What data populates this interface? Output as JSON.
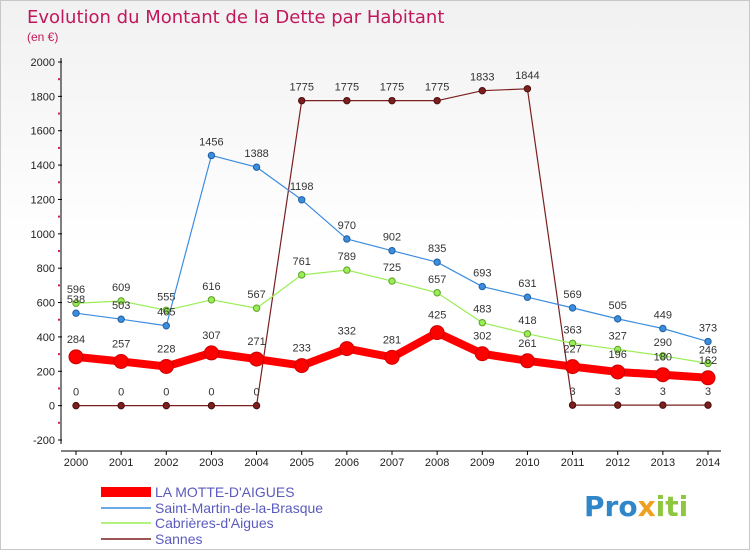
{
  "chart_data": {
    "type": "line",
    "title": "Evolution du Montant de la Dette par Habitant",
    "subtitle": "(en €)",
    "categories": [
      "2000",
      "2001",
      "2002",
      "2003",
      "2004",
      "2005",
      "2006",
      "2007",
      "2008",
      "2009",
      "2010",
      "2011",
      "2012",
      "2013",
      "2014"
    ],
    "ylim": [
      -200,
      2000
    ],
    "yticks": [
      -200,
      0,
      200,
      400,
      600,
      800,
      1000,
      1200,
      1400,
      1600,
      1800,
      2000
    ],
    "grid": false,
    "legend_position": "bottom-left",
    "series": [
      {
        "name": "LA MOTTE-D'AIGUES",
        "color": "#ff0000",
        "values": [
          284,
          257,
          228,
          307,
          271,
          233,
          332,
          281,
          425,
          302,
          261,
          227,
          196,
          180,
          162
        ]
      },
      {
        "name": "Saint-Martin-de-la-Brasque",
        "color": "#3c8dde",
        "values": [
          538,
          503,
          465,
          1456,
          1388,
          1198,
          970,
          902,
          835,
          693,
          631,
          569,
          505,
          449,
          373
        ]
      },
      {
        "name": "Cabrières-d'Aigues",
        "color": "#99ee55",
        "values": [
          596,
          609,
          555,
          616,
          567,
          761,
          789,
          725,
          657,
          483,
          418,
          363,
          327,
          290,
          246
        ]
      },
      {
        "name": "Sannes",
        "color": "#7b1f1f",
        "values": [
          0,
          0,
          0,
          0,
          0,
          1775,
          1775,
          1775,
          1775,
          1833,
          1844,
          3,
          3,
          3,
          3
        ]
      }
    ]
  },
  "logo": {
    "text": "Proxiti"
  }
}
